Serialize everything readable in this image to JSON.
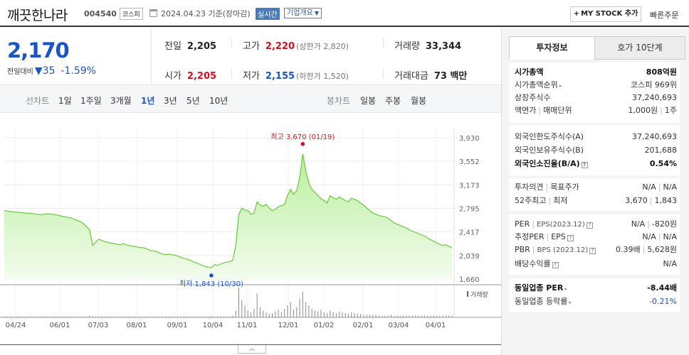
{
  "header": {
    "name": "깨끗한나라",
    "code": "004540",
    "market": "코스피",
    "date": "2024.04.23 기준(장마감)",
    "realtime": "실시간",
    "overview": "기업개요",
    "mystock": "MY STOCK 추가",
    "quick_order": "빠른주문"
  },
  "summary": {
    "price": "2,170",
    "change_label": "전일대비",
    "change_amount": "35",
    "change_pct": "-1.59%",
    "prev_close": {
      "label": "전일",
      "value": "2,205"
    },
    "open": {
      "label": "시가",
      "value": "2,205"
    },
    "high": {
      "label": "고가",
      "value": "2,220",
      "sub": "(상한가 2,820)"
    },
    "low": {
      "label": "저가",
      "value": "2,155",
      "sub": "(하한가 1,520)"
    },
    "volume": {
      "label": "거래량",
      "value": "33,344"
    },
    "amount": {
      "label": "거래대금",
      "value": "73 백만"
    }
  },
  "periods": {
    "line_label": "선차트",
    "items": [
      "1일",
      "1주일",
      "3개월",
      "1년",
      "3년",
      "5년",
      "10년"
    ],
    "active": "1년",
    "candle_label": "봉차트",
    "candle_items": [
      "일봉",
      "주봉",
      "월봉"
    ]
  },
  "chart_data": {
    "type": "area",
    "y_ticks": [
      "3,930",
      "3,552",
      "3,173",
      "2,795",
      "2,417",
      "2,039",
      "1,660"
    ],
    "x_ticks": [
      "04/24",
      "06/01",
      "07/03",
      "08/01",
      "09/01",
      "10/04",
      "11/01",
      "12/01",
      "01/02",
      "02/01",
      "03/04",
      "04/01"
    ],
    "ylim": [
      1660,
      3930
    ],
    "high_label": "최고 3,670 (01/19)",
    "low_label": "최저 1,843 (10/30)",
    "volume_label": "거래량",
    "values": [
      2760,
      2750,
      2745,
      2740,
      2735,
      2730,
      2725,
      2720,
      2718,
      2715,
      2705,
      2700,
      2695,
      2700,
      2710,
      2705,
      2700,
      2690,
      2680,
      2670,
      2660,
      2650,
      2640,
      2620,
      2600,
      2580,
      2550,
      2500,
      2450,
      2200,
      2250,
      2300,
      2280,
      2260,
      2250,
      2240,
      2230,
      2220,
      2210,
      2230,
      2210,
      2200,
      2190,
      2180,
      2170,
      2165,
      2160,
      2140,
      2120,
      2110,
      2100,
      2080,
      2060,
      2050,
      2060,
      2050,
      2040,
      2030,
      2010,
      1990,
      1980,
      1960,
      1940,
      1920,
      1900,
      1880,
      1860,
      1850,
      1843,
      1890,
      1880,
      1900,
      1920,
      1930,
      1940,
      1960,
      2200,
      2700,
      2800,
      2770,
      2760,
      2700,
      2720,
      2900,
      2850,
      2830,
      2860,
      2800,
      2760,
      2780,
      2820,
      2840,
      2860,
      3000,
      3100,
      3020,
      3080,
      3300,
      3670,
      3400,
      3200,
      3100,
      3050,
      3000,
      2950,
      2920,
      2880,
      3000,
      2970,
      2940,
      2980,
      2950,
      2920,
      2900,
      2960,
      2940,
      2920,
      2880,
      2850,
      2800,
      2760,
      2720,
      2700,
      2680,
      2670,
      2660,
      2640,
      2600,
      2560,
      2540,
      2520,
      2500,
      2480,
      2450,
      2430,
      2410,
      2390,
      2370,
      2350,
      2320,
      2290,
      2270,
      2240,
      2220,
      2200,
      2210,
      2180,
      2170
    ],
    "volume": [
      1,
      1,
      1,
      1,
      1,
      1,
      1,
      1,
      1,
      1,
      1,
      1,
      1,
      1,
      1,
      1,
      1,
      1,
      1,
      1,
      1,
      1,
      1,
      1,
      1,
      1,
      1,
      1,
      2,
      1,
      1,
      1,
      1,
      1,
      1,
      1,
      1,
      1,
      1,
      1,
      1,
      1,
      1,
      1,
      1,
      1,
      1,
      1,
      1,
      1,
      1,
      1,
      1,
      1,
      1,
      1,
      1,
      1,
      1,
      1,
      1,
      1,
      1,
      1,
      1,
      1,
      1,
      1,
      2,
      1,
      1,
      1,
      1,
      1,
      1,
      2,
      8,
      35,
      20,
      14,
      8,
      6,
      10,
      28,
      12,
      8,
      6,
      4,
      5,
      7,
      9,
      6,
      10,
      14,
      18,
      9,
      12,
      22,
      30,
      18,
      14,
      10,
      8,
      7,
      9,
      6,
      5,
      8,
      6,
      5,
      7,
      6,
      5,
      4,
      6,
      5,
      4,
      4,
      3,
      3,
      3,
      3,
      3,
      2,
      2,
      2,
      2,
      3,
      2,
      2,
      2,
      2,
      2,
      2,
      2,
      2,
      2,
      2,
      2,
      2,
      2,
      2,
      2,
      2,
      2,
      2,
      2,
      2
    ]
  },
  "panel": {
    "tab_active": "투자정보",
    "tab_inactive": "호가 10단계",
    "market_cap": {
      "label": "시가총액",
      "value": "808억원"
    },
    "market_cap_rank": {
      "label": "시가총액순위",
      "value": "코스피 969위"
    },
    "listed_shares": {
      "label": "상장주식수",
      "value": "37,240,693"
    },
    "par_value": {
      "label": "액면가",
      "label2": "매매단위",
      "value": "1,000원",
      "value2": "1주"
    },
    "foreign_limit": {
      "label": "외국인한도주식수(A)",
      "value": "37,240,693"
    },
    "foreign_hold": {
      "label": "외국인보유주식수(B)",
      "value": "201,688"
    },
    "foreign_ratio": {
      "label": "외국인소진율(B/A)",
      "value": "0.54%"
    },
    "opinion": {
      "label": "투자의견",
      "label2": "목표주가",
      "value": "N/A",
      "value2": "N/A"
    },
    "week52": {
      "label": "52주최고",
      "label2": "최저",
      "value": "3,670",
      "value2": "1,843"
    },
    "per": {
      "label": "PER",
      "label2": "EPS(2023.12)",
      "value": "N/A",
      "value2": "-820원"
    },
    "est_per": {
      "label": "추정PER",
      "label2": "EPS",
      "value": "N/A",
      "value2": "N/A"
    },
    "pbr": {
      "label": "PBR",
      "label2": "BPS (2023.12)",
      "value": "0.39배",
      "value2": "5,628원"
    },
    "dividend": {
      "label": "배당수익률",
      "value": "N/A"
    },
    "industry_per": {
      "label": "동일업종 PER",
      "value": "-8.44배"
    },
    "industry_rate": {
      "label": "동일업종 등락률",
      "value": "-0.21%"
    }
  }
}
